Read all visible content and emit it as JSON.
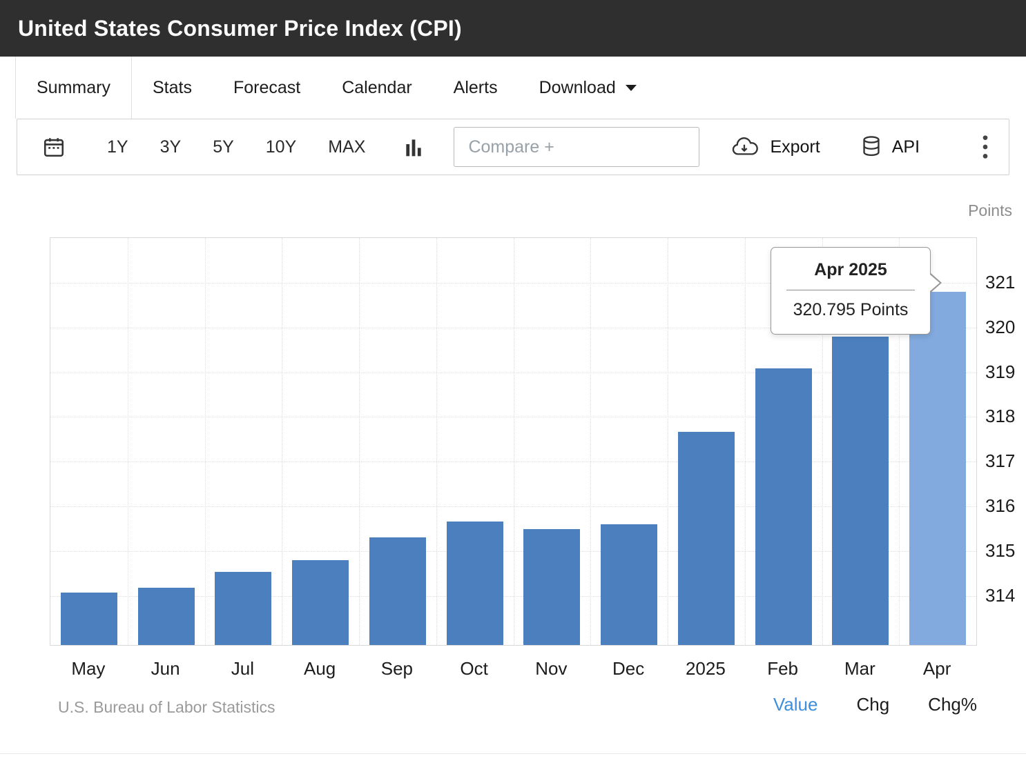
{
  "header": {
    "title": "United States Consumer Price Index (CPI)"
  },
  "tabs": {
    "items": [
      {
        "label": "Summary",
        "active": true
      },
      {
        "label": "Stats",
        "active": false
      },
      {
        "label": "Forecast",
        "active": false
      },
      {
        "label": "Calendar",
        "active": false
      },
      {
        "label": "Alerts",
        "active": false
      },
      {
        "label": "Download",
        "active": false,
        "has_caret": true
      }
    ]
  },
  "toolbar": {
    "ranges": [
      "1Y",
      "3Y",
      "5Y",
      "10Y",
      "MAX"
    ],
    "compare_placeholder": "Compare +",
    "export_label": "Export",
    "api_label": "API",
    "icons": {
      "date_picker": "calendar-icon",
      "chart_type": "bar-chart-icon",
      "export": "cloud-download-icon",
      "api": "database-icon",
      "menu": "kebab-menu-icon",
      "download_caret": "chevron-down-icon"
    }
  },
  "colors": {
    "header_background": "#2f2f2f",
    "accent_blue": "#3e8ede",
    "bar": "#4c7fbe",
    "bar_highlight": "#82aade"
  },
  "chart_data": {
    "type": "bar",
    "title": "United States Consumer Price Index (CPI)",
    "unit_label": "Points",
    "categories": [
      "May",
      "Jun",
      "Jul",
      "Aug",
      "Sep",
      "Oct",
      "Nov",
      "Dec",
      "2025",
      "Feb",
      "Mar",
      "Apr"
    ],
    "values": [
      314.069,
      314.175,
      314.54,
      314.796,
      315.301,
      315.664,
      315.493,
      315.605,
      317.671,
      319.082,
      319.799,
      320.795
    ],
    "ylim": [
      312.9,
      322.0
    ],
    "yticks": [
      314,
      315,
      316,
      317,
      318,
      319,
      320,
      321
    ],
    "grid": true,
    "legend_position": "none",
    "bar_color": "#4c7fbe",
    "highlight_color": "#82aade",
    "highlight_index": 11,
    "tooltip": {
      "title": "Apr 2025",
      "value": "320.795 Points"
    }
  },
  "footer": {
    "source": "U.S. Bureau of Labor Statistics",
    "modes": [
      {
        "label": "Value",
        "active": true
      },
      {
        "label": "Chg",
        "active": false
      },
      {
        "label": "Chg%",
        "active": false
      }
    ]
  }
}
